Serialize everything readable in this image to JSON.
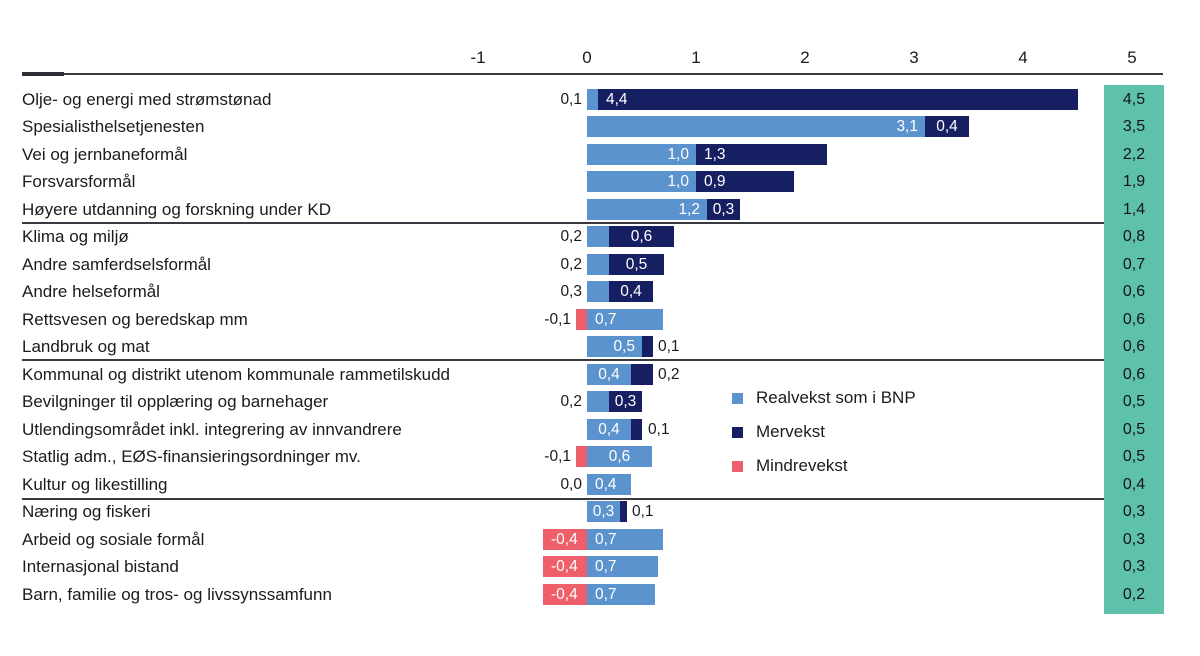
{
  "colors": {
    "realvekst": "#5b93ce",
    "mervekst": "#171f63",
    "mindrevekst": "#ef5f69",
    "totals_column": "#5ec2ab",
    "separator_line": "#3a3a42",
    "text": "#1b1b1b"
  },
  "legend": [
    {
      "series": "realvekst",
      "label": "Realvekst som i BNP"
    },
    {
      "series": "mervekst",
      "label": "Mervekst"
    },
    {
      "series": "mindrevekst",
      "label": "Mindrevekst"
    }
  ],
  "chart_data": {
    "type": "bar",
    "orientation": "horizontal-stacked",
    "title": "",
    "xlabel": "",
    "ylabel": "",
    "xlim": [
      -1,
      5
    ],
    "x_ticks": [
      {
        "label": "-1",
        "value": -1
      },
      {
        "label": "0",
        "value": 0
      },
      {
        "label": "1",
        "value": 1
      },
      {
        "label": "2",
        "value": 2
      },
      {
        "label": "3",
        "value": 3
      },
      {
        "label": "4",
        "value": 4
      },
      {
        "label": "5",
        "value": 5
      }
    ],
    "grid": false,
    "legend_position": "center-right",
    "series_names": [
      "Realvekst som i BNP",
      "Mervekst",
      "Mindrevekst"
    ],
    "number_format": "nb-NO comma decimals",
    "group_breaks_after_rows": [
      5,
      10,
      15
    ],
    "rows": [
      {
        "category": "Olje- og energi med strømstønad",
        "total_label": "4,5",
        "total": 4.5,
        "left_label": "0,1",
        "segments": [
          {
            "series": "realvekst",
            "value": 0.1,
            "width": 0.1,
            "label": null
          },
          {
            "series": "mervekst",
            "value": 4.4,
            "width": 4.4,
            "label": "4,4",
            "align": "left"
          }
        ]
      },
      {
        "category": "Spesialisthelsetjenesten",
        "total_label": "3,5",
        "total": 3.5,
        "segments": [
          {
            "series": "realvekst",
            "value": 3.1,
            "width": 3.1,
            "label": "3,1",
            "align": "right"
          },
          {
            "series": "mervekst",
            "value": 0.4,
            "width": 0.4,
            "label": "0,4",
            "align": "center"
          }
        ]
      },
      {
        "category": "Vei og jernbaneformål",
        "total_label": "2,2",
        "total": 2.2,
        "segments": [
          {
            "series": "realvekst",
            "value": 1.0,
            "width": 1.0,
            "label": "1,0",
            "align": "right"
          },
          {
            "series": "mervekst",
            "value": 1.3,
            "width": 1.2,
            "label": "1,3",
            "align": "left"
          }
        ]
      },
      {
        "category": "Forsvarsformål",
        "total_label": "1,9",
        "total": 1.9,
        "segments": [
          {
            "series": "realvekst",
            "value": 1.0,
            "width": 1.0,
            "label": "1,0",
            "align": "right"
          },
          {
            "series": "mervekst",
            "value": 0.9,
            "width": 0.9,
            "label": "0,9",
            "align": "left"
          }
        ]
      },
      {
        "category": "Høyere utdanning og forskning under KD",
        "total_label": "1,4",
        "total": 1.4,
        "segments": [
          {
            "series": "realvekst",
            "value": 1.2,
            "width": 1.1,
            "label": "1,2",
            "align": "right"
          },
          {
            "series": "mervekst",
            "value": 0.3,
            "width": 0.3,
            "label": "0,3",
            "align": "center"
          }
        ]
      },
      {
        "category": "Klima og miljø",
        "total_label": "0,8",
        "total": 0.8,
        "left_label": "0,2",
        "segments": [
          {
            "series": "realvekst",
            "value": 0.2,
            "width": 0.2,
            "label": null
          },
          {
            "series": "mervekst",
            "value": 0.6,
            "width": 0.6,
            "label": "0,6",
            "align": "center"
          }
        ]
      },
      {
        "category": "Andre samferdselsformål",
        "total_label": "0,7",
        "total": 0.7,
        "left_label": "0,2",
        "segments": [
          {
            "series": "realvekst",
            "value": 0.2,
            "width": 0.2,
            "label": null
          },
          {
            "series": "mervekst",
            "value": 0.5,
            "width": 0.5,
            "label": "0,5",
            "align": "center"
          }
        ]
      },
      {
        "category": "Andre helseformål",
        "total_label": "0,6",
        "total": 0.6,
        "left_label": "0,3",
        "segments": [
          {
            "series": "realvekst",
            "value": 0.3,
            "width": 0.2,
            "label": null
          },
          {
            "series": "mervekst",
            "value": 0.4,
            "width": 0.4,
            "label": "0,4",
            "align": "center"
          }
        ]
      },
      {
        "category": "Rettsvesen og beredskap mm",
        "total_label": "0,6",
        "total": 0.6,
        "left_label": "-0,1",
        "segments": [
          {
            "series": "mindrevekst",
            "value": -0.1,
            "width": 0.1,
            "label": null
          },
          {
            "series": "realvekst",
            "value": 0.7,
            "width": 0.7,
            "label": "0,7",
            "align": "left"
          }
        ]
      },
      {
        "category": "Landbruk og mat",
        "total_label": "0,6",
        "total": 0.6,
        "right_label": "0,1",
        "segments": [
          {
            "series": "realvekst",
            "value": 0.5,
            "width": 0.5,
            "label": "0,5",
            "align": "right"
          },
          {
            "series": "mervekst",
            "value": 0.1,
            "width": 0.1,
            "label": null
          }
        ]
      },
      {
        "category": "Kommunal og distrikt utenom kommunale rammetilskudd",
        "total_label": "0,6",
        "total": 0.6,
        "right_label": "0,2",
        "segments": [
          {
            "series": "realvekst",
            "value": 0.4,
            "width": 0.4,
            "label": "0,4",
            "align": "center"
          },
          {
            "series": "mervekst",
            "value": 0.2,
            "width": 0.2,
            "label": null
          }
        ]
      },
      {
        "category": "Bevilgninger til opplæring og barnehager",
        "total_label": "0,5",
        "total": 0.5,
        "left_label": "0,2",
        "segments": [
          {
            "series": "realvekst",
            "value": 0.2,
            "width": 0.2,
            "label": null
          },
          {
            "series": "mervekst",
            "value": 0.3,
            "width": 0.3,
            "label": "0,3",
            "align": "center"
          }
        ]
      },
      {
        "category": "Utlendingsområdet inkl. integrering av innvandrere",
        "total_label": "0,5",
        "total": 0.5,
        "right_label": "0,1",
        "segments": [
          {
            "series": "realvekst",
            "value": 0.4,
            "width": 0.4,
            "label": "0,4",
            "align": "center"
          },
          {
            "series": "mervekst",
            "value": 0.1,
            "width": 0.1,
            "label": null
          }
        ]
      },
      {
        "category": "Statlig adm., EØS-finansieringsordninger mv.",
        "total_label": "0,5",
        "total": 0.5,
        "left_label": "-0,1",
        "segments": [
          {
            "series": "mindrevekst",
            "value": -0.1,
            "width": 0.1,
            "label": null
          },
          {
            "series": "realvekst",
            "value": 0.6,
            "width": 0.6,
            "label": "0,6",
            "align": "center"
          }
        ]
      },
      {
        "category": "Kultur og likestilling",
        "total_label": "0,4",
        "total": 0.4,
        "left_label": "0,0",
        "segments": [
          {
            "series": "realvekst",
            "value": 0.4,
            "width": 0.4,
            "label": "0,4",
            "align": "left"
          }
        ]
      },
      {
        "category": "Næring og fiskeri",
        "total_label": "0,3",
        "total": 0.3,
        "right_label": "0,1",
        "segments": [
          {
            "series": "realvekst",
            "value": 0.3,
            "width": 0.3,
            "label": "0,3",
            "align": "center"
          },
          {
            "series": "mervekst",
            "value": 0.1,
            "width": 0.06,
            "label": null
          }
        ]
      },
      {
        "category": "Arbeid og sosiale formål",
        "total_label": "0,3",
        "total": 0.3,
        "segments": [
          {
            "series": "mindrevekst",
            "value": -0.4,
            "width": 0.4,
            "label": "-0,4",
            "align": "left"
          },
          {
            "series": "realvekst",
            "value": 0.7,
            "width": 0.7,
            "label": "0,7",
            "align": "left"
          }
        ]
      },
      {
        "category": "Internasjonal bistand",
        "total_label": "0,3",
        "total": 0.3,
        "segments": [
          {
            "series": "mindrevekst",
            "value": -0.4,
            "width": 0.4,
            "label": "-0,4",
            "align": "left"
          },
          {
            "series": "realvekst",
            "value": 0.7,
            "width": 0.65,
            "label": "0,7",
            "align": "left"
          }
        ]
      },
      {
        "category": "Barn, familie og tros- og livssynssamfunn",
        "total_label": "0,2",
        "total": 0.2,
        "segments": [
          {
            "series": "mindrevekst",
            "value": -0.4,
            "width": 0.4,
            "label": "-0,4",
            "align": "left"
          },
          {
            "series": "realvekst",
            "value": 0.7,
            "width": 0.62,
            "label": "0,7",
            "align": "left"
          }
        ]
      }
    ]
  }
}
